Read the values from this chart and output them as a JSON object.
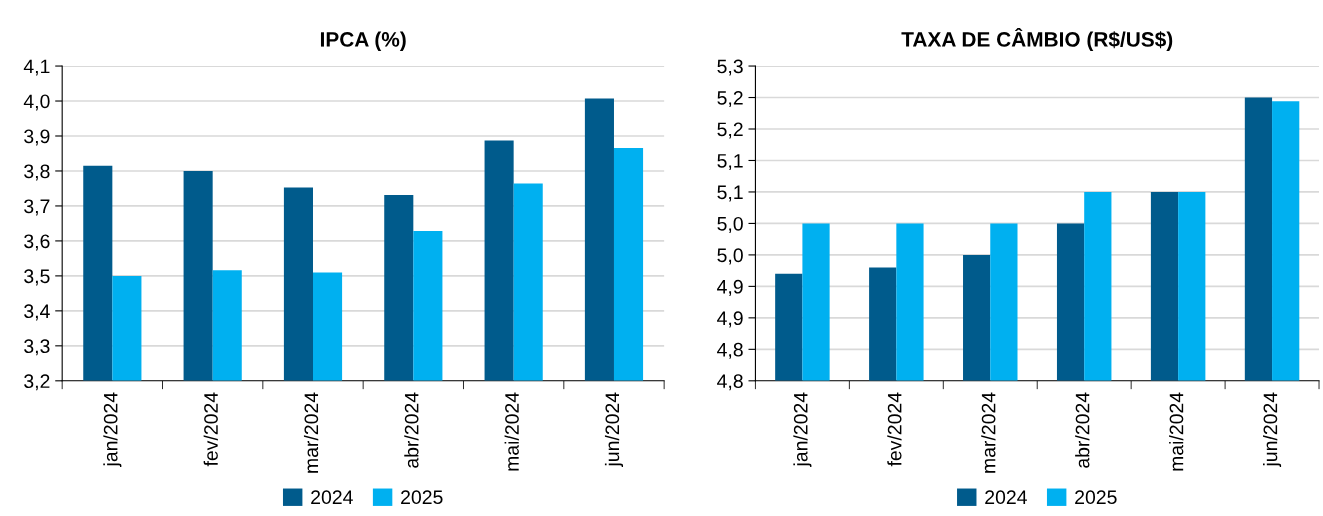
{
  "chart_data": [
    {
      "type": "bar",
      "title": "IPCA (%)",
      "categories": [
        "jan/2024",
        "fev/2024",
        "mar/2024",
        "abr/2024",
        "mai/2024",
        "jun/2024"
      ],
      "series": [
        {
          "name": "2024",
          "color": "#005b8c",
          "values": [
            3.815,
            3.8,
            3.753,
            3.731,
            3.887,
            4.007
          ]
        },
        {
          "name": "2025",
          "color": "#00b0f0",
          "values": [
            3.5,
            3.516,
            3.51,
            3.628,
            3.764,
            3.866
          ]
        }
      ],
      "ylim": [
        3.2,
        4.1
      ],
      "yticks": [
        {
          "value": 3.2,
          "label": "3,2"
        },
        {
          "value": 3.3,
          "label": "3,3"
        },
        {
          "value": 3.4,
          "label": "3,4"
        },
        {
          "value": 3.5,
          "label": "3,5"
        },
        {
          "value": 3.6,
          "label": "3,6"
        },
        {
          "value": 3.7,
          "label": "3,7"
        },
        {
          "value": 3.8,
          "label": "3,8"
        },
        {
          "value": 3.9,
          "label": "3,9"
        },
        {
          "value": 4.0,
          "label": "4,0"
        },
        {
          "value": 4.1,
          "label": "4,1"
        }
      ],
      "grid": "y",
      "legend": "bottom"
    },
    {
      "type": "bar",
      "title": "TAXA DE CÂMBIO (R$/US$)",
      "categories": [
        "jan/2024",
        "fev/2024",
        "mar/2024",
        "abr/2024",
        "mai/2024",
        "jun/2024"
      ],
      "series": [
        {
          "name": "2024",
          "color": "#005b8c",
          "values": [
            4.97,
            4.98,
            5.0,
            5.05,
            5.1,
            5.25
          ]
        },
        {
          "name": "2025",
          "color": "#00b0f0",
          "values": [
            5.05,
            5.05,
            5.05,
            5.1,
            5.1,
            5.244
          ]
        }
      ],
      "ylim": [
        4.8,
        5.3
      ],
      "yticks": [
        {
          "value": 4.8,
          "label": "4,8"
        },
        {
          "value": 4.85,
          "label": "4,8"
        },
        {
          "value": 4.9,
          "label": "4,9"
        },
        {
          "value": 4.95,
          "label": "4,9"
        },
        {
          "value": 5.0,
          "label": "5,0"
        },
        {
          "value": 5.05,
          "label": "5,0"
        },
        {
          "value": 5.1,
          "label": "5,1"
        },
        {
          "value": 5.15,
          "label": "5,1"
        },
        {
          "value": 5.2,
          "label": "5,2"
        },
        {
          "value": 5.25,
          "label": "5,2"
        },
        {
          "value": 5.3,
          "label": "5,3"
        }
      ],
      "grid": "y",
      "legend": "bottom"
    }
  ]
}
